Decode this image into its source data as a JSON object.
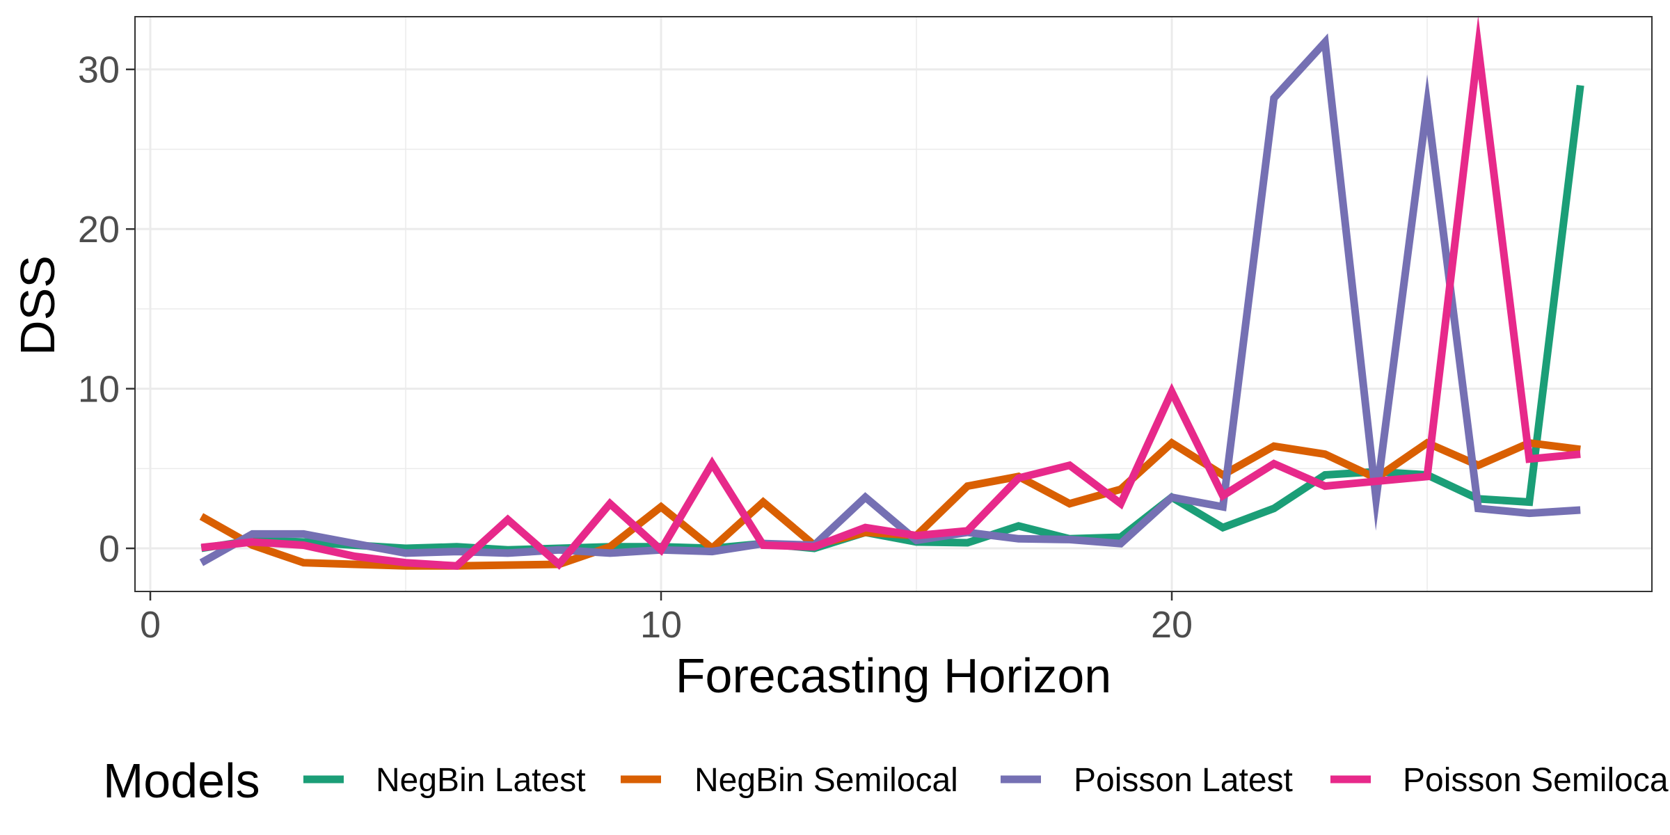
{
  "chart_data": {
    "type": "line",
    "title": "",
    "xlabel": "Forecasting Horizon",
    "ylabel": "DSS",
    "xlim": [
      -0.3,
      29.4
    ],
    "ylim": [
      -2.7,
      33.3
    ],
    "xticks": [
      0,
      10,
      20
    ],
    "yticks": [
      0,
      10,
      20,
      30
    ],
    "grid": true,
    "legend": {
      "title": "Models",
      "position": "bottom"
    },
    "x": [
      1,
      2,
      3,
      4,
      5,
      6,
      7,
      8,
      9,
      10,
      11,
      12,
      13,
      14,
      15,
      16,
      17,
      18,
      19,
      20,
      21,
      22,
      23,
      24,
      25,
      26,
      27,
      28
    ],
    "series": [
      {
        "name": "NegBin Latest",
        "color": "#1b9e77",
        "values": [
          0,
          0.5,
          0.4,
          0.2,
          0.0,
          0.1,
          -0.1,
          0.0,
          0.1,
          0.1,
          0.0,
          0.3,
          0.0,
          1.0,
          0.4,
          0.35,
          1.4,
          0.6,
          0.7,
          3.2,
          1.3,
          2.5,
          4.6,
          4.8,
          4.6,
          3.1,
          2.9,
          29.0
        ]
      },
      {
        "name": "NegBin Semilocal",
        "color": "#d95f02",
        "values": [
          2.0,
          0.2,
          -0.9,
          -1.0,
          -1.1,
          -1.1,
          -1.05,
          -1.0,
          0.1,
          2.6,
          0.0,
          2.9,
          0.2,
          1.0,
          0.8,
          3.9,
          4.5,
          2.8,
          3.7,
          6.6,
          4.6,
          6.4,
          5.9,
          4.4,
          6.6,
          5.2,
          6.6,
          6.2
        ]
      },
      {
        "name": "Poisson Latest",
        "color": "#7570b3",
        "values": [
          -0.9,
          0.9,
          0.9,
          0.3,
          -0.3,
          -0.2,
          -0.3,
          -0.1,
          -0.3,
          -0.1,
          -0.2,
          0.3,
          0.2,
          3.2,
          0.5,
          1.0,
          0.6,
          0.55,
          0.3,
          3.2,
          2.6,
          28.2,
          31.7,
          3.1,
          27.8,
          2.5,
          2.2,
          2.4
        ]
      },
      {
        "name": "Poisson Semilocal",
        "color": "#e7298a",
        "values": [
          0.05,
          0.4,
          0.2,
          -0.5,
          -0.9,
          -1.1,
          1.8,
          -1.0,
          2.8,
          -0.1,
          5.3,
          0.2,
          0.1,
          1.3,
          0.8,
          1.1,
          4.4,
          5.2,
          2.8,
          9.8,
          3.3,
          5.3,
          3.9,
          4.2,
          4.5,
          31.4,
          5.6,
          5.9
        ]
      }
    ]
  }
}
